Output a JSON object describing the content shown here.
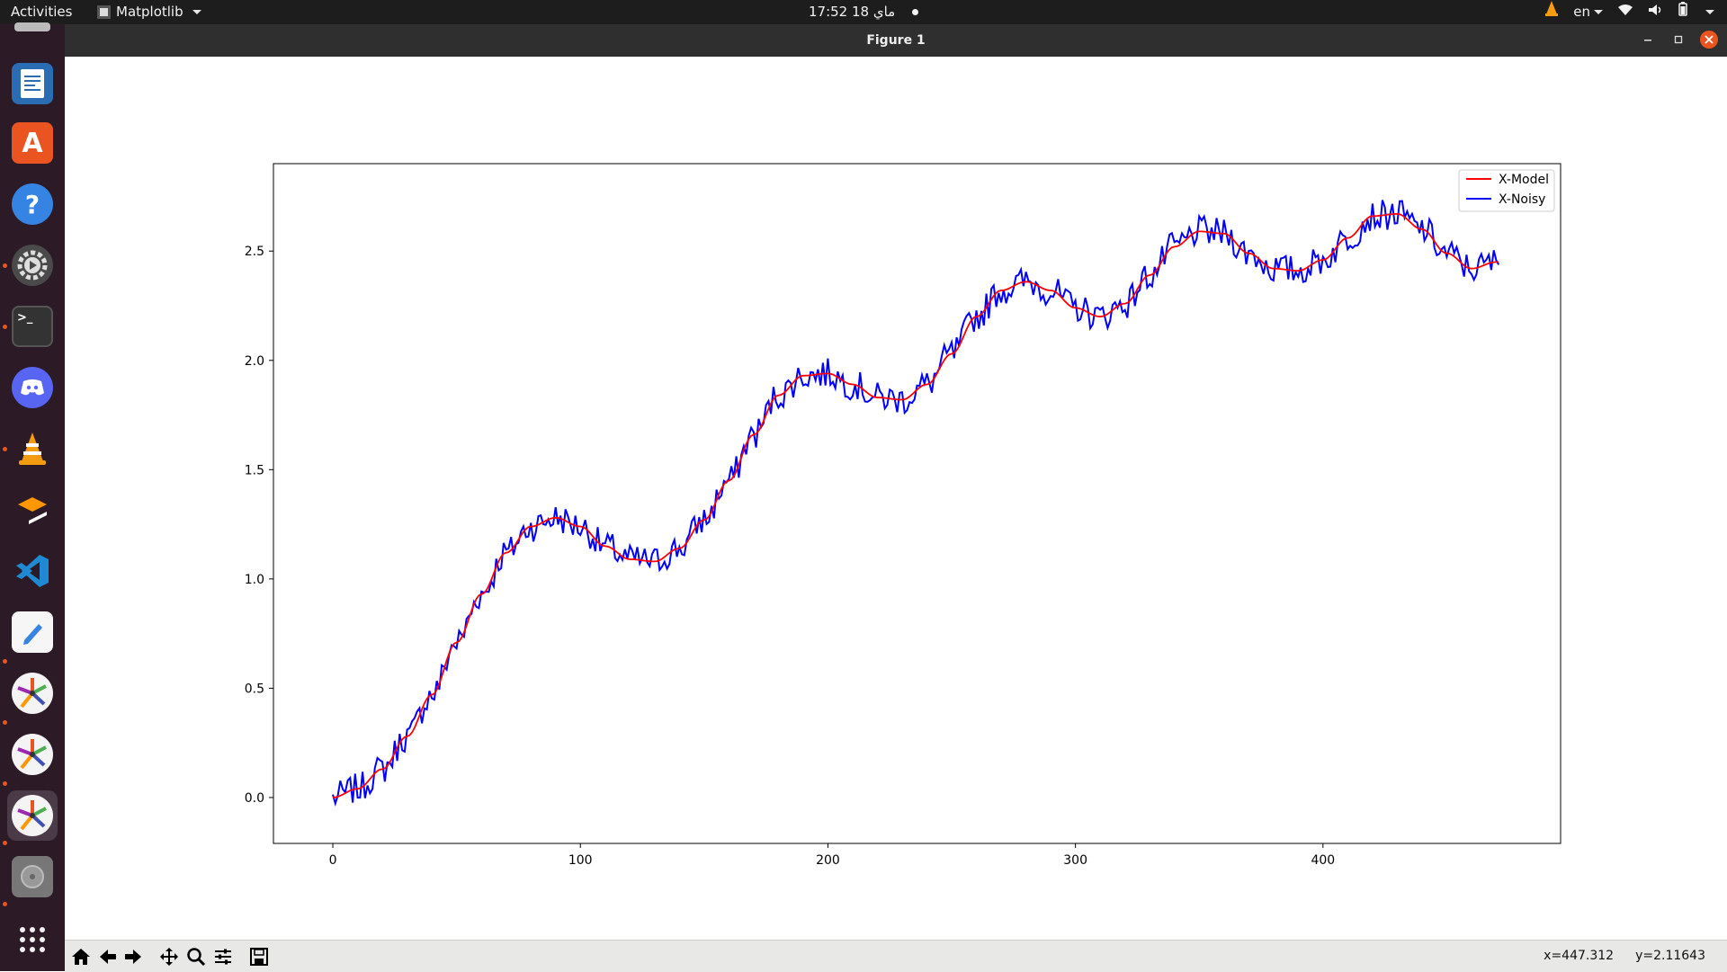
{
  "topbar": {
    "activities": "Activities",
    "app_name": "Matplotlib",
    "clock": "17:52  18 ماي",
    "language": "en"
  },
  "dock": {
    "items": [
      {
        "name": "libreoffice-writer",
        "running": false
      },
      {
        "name": "ubuntu-software",
        "running": false
      },
      {
        "name": "help",
        "running": false
      },
      {
        "name": "settings",
        "running": true
      },
      {
        "name": "terminal",
        "running": true
      },
      {
        "name": "discord",
        "running": false
      },
      {
        "name": "vlc",
        "running": true
      },
      {
        "name": "sublime-text",
        "running": false
      },
      {
        "name": "vscode",
        "running": false
      },
      {
        "name": "text-editor",
        "running": true
      },
      {
        "name": "matplotlib-figure",
        "running": true
      },
      {
        "name": "matplotlib-figure",
        "running": true
      },
      {
        "name": "matplotlib-figure",
        "running": true,
        "active": true
      },
      {
        "name": "disks",
        "running": true
      },
      {
        "name": "show-applications",
        "running": false
      }
    ]
  },
  "window": {
    "title": "Figure 1"
  },
  "chart_data": {
    "type": "line",
    "title": "",
    "xlabel": "",
    "ylabel": "",
    "xlim": [
      -24,
      496
    ],
    "ylim": [
      -0.21,
      2.9
    ],
    "xticks": [
      0,
      100,
      200,
      300,
      400
    ],
    "yticks": [
      0.0,
      0.5,
      1.0,
      1.5,
      2.0,
      2.5
    ],
    "ytick_labels": [
      "0.0",
      "0.5",
      "1.0",
      "1.5",
      "2.0",
      "2.5"
    ],
    "grid": false,
    "legend_position": "upper right",
    "series": [
      {
        "name": "X-Model",
        "color": "#ff0000",
        "x": [
          0,
          10,
          20,
          30,
          40,
          50,
          60,
          70,
          80,
          90,
          100,
          110,
          120,
          130,
          140,
          150,
          160,
          170,
          180,
          190,
          200,
          210,
          220,
          230,
          240,
          250,
          260,
          270,
          280,
          290,
          300,
          310,
          320,
          330,
          340,
          350,
          360,
          370,
          380,
          390,
          400,
          410,
          420,
          430,
          440,
          450,
          460,
          470
        ],
        "y": [
          0.0,
          0.04,
          0.13,
          0.28,
          0.47,
          0.71,
          0.93,
          1.12,
          1.24,
          1.28,
          1.24,
          1.15,
          1.09,
          1.08,
          1.14,
          1.27,
          1.45,
          1.66,
          1.84,
          1.93,
          1.94,
          1.89,
          1.83,
          1.82,
          1.89,
          2.03,
          2.2,
          2.32,
          2.36,
          2.32,
          2.24,
          2.2,
          2.26,
          2.39,
          2.52,
          2.59,
          2.58,
          2.49,
          2.42,
          2.41,
          2.46,
          2.56,
          2.66,
          2.67,
          2.6,
          2.49,
          2.42,
          2.45
        ]
      },
      {
        "name": "X-Noisy",
        "color": "#0000ff",
        "noise_amplitude": 0.07,
        "points": 472,
        "x_range": [
          0,
          471
        ]
      }
    ]
  },
  "toolbar": {
    "buttons": [
      "home-icon",
      "back-icon",
      "forward-icon",
      "pan-icon",
      "zoom-icon",
      "configure-subplots-icon",
      "save-icon"
    ],
    "x_coord": "x=447.312",
    "y_coord": "y=2.11643"
  }
}
